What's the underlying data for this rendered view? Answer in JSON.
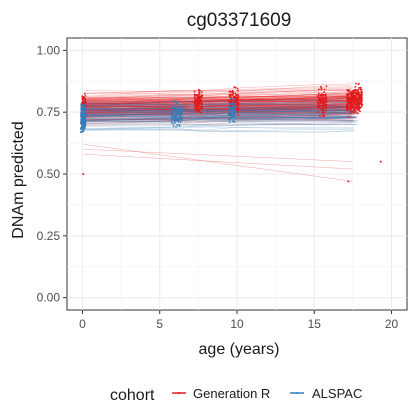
{
  "chart_data": {
    "type": "scatter",
    "title": "cg03371609",
    "xlabel": "age (years)",
    "ylabel": "DNAm predicted",
    "xlim": [
      -1,
      21
    ],
    "ylim": [
      -0.05,
      1.05
    ],
    "x_ticks": [
      0,
      5,
      10,
      15,
      20
    ],
    "x_tick_labels": [
      "0",
      "5",
      "10",
      "15",
      "20"
    ],
    "y_ticks": [
      0,
      0.25,
      0.5,
      0.75,
      1
    ],
    "y_tick_labels": [
      "0.00",
      "0.25",
      "0.50",
      "0.75",
      "1.00"
    ],
    "grid": true,
    "legend": {
      "title": "cohort",
      "placement": "bottom",
      "entries": [
        {
          "label": "Generation R",
          "color": "#e41a1c"
        },
        {
          "label": "ALSPAC",
          "color": "#377eb8"
        }
      ]
    },
    "series": [
      {
        "name": "Generation R",
        "color": "#e41a1c",
        "timepoints": [
          0,
          6,
          7.5,
          9.8,
          15.5,
          17.6
        ],
        "trajectory_y_range": [
          0.5,
          0.89
        ]
      },
      {
        "name": "ALSPAC",
        "color": "#377eb8",
        "timepoints": [
          0,
          6,
          7.5,
          9.8,
          15.5,
          17.6
        ],
        "trajectory_y_range": [
          0.55,
          0.87
        ]
      }
    ]
  }
}
